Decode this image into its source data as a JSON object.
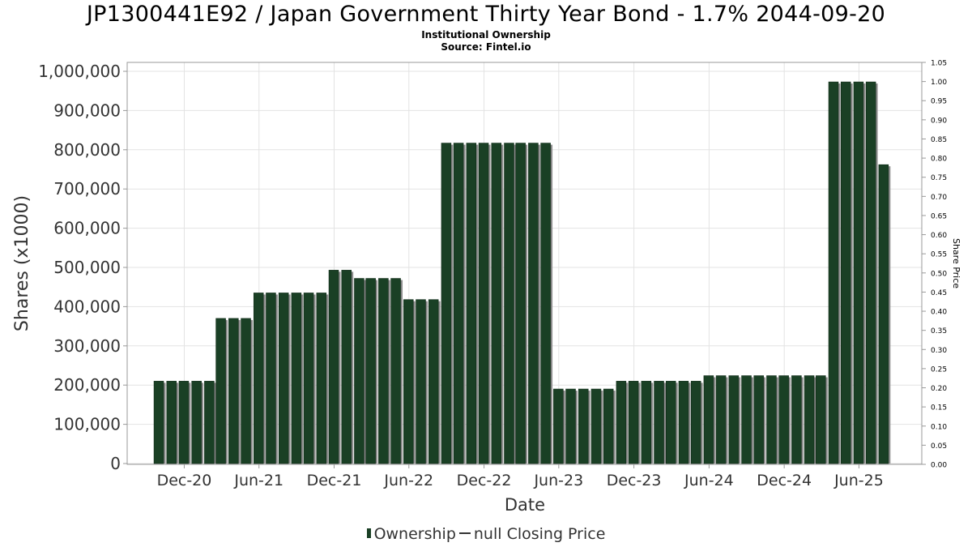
{
  "chart_data": {
    "type": "bar",
    "title": "JP1300441E92 / Japan Government Thirty Year Bond - 1.7% 2044-09-20",
    "subtitle_lines": [
      "Institutional Ownership",
      "Source: Fintel.io"
    ],
    "xlabel": "Date",
    "ylabel": "Shares (x1000)",
    "y2label": "Share Price",
    "ylim": [
      0,
      1020000
    ],
    "y_ticks": [
      "0",
      "100,000",
      "200,000",
      "300,000",
      "400,000",
      "500,000",
      "600,000",
      "700,000",
      "800,000",
      "900,000",
      "1,000,000"
    ],
    "y_tick_values": [
      0,
      100000,
      200000,
      300000,
      400000,
      500000,
      600000,
      700000,
      800000,
      900000,
      1000000
    ],
    "y2lim": [
      0,
      1.05
    ],
    "y2_ticks": [
      "0.00",
      "0.05",
      "0.10",
      "0.15",
      "0.20",
      "0.25",
      "0.30",
      "0.35",
      "0.40",
      "0.45",
      "0.50",
      "0.55",
      "0.60",
      "0.65",
      "0.70",
      "0.75",
      "0.80",
      "0.85",
      "0.90",
      "0.95",
      "1.00",
      "1.05"
    ],
    "x_ticks": [
      {
        "label": "Dec-20",
        "date": "2020-12-01"
      },
      {
        "label": "Jun-21",
        "date": "2021-06-01"
      },
      {
        "label": "Dec-21",
        "date": "2021-12-01"
      },
      {
        "label": "Jun-22",
        "date": "2022-06-01"
      },
      {
        "label": "Dec-22",
        "date": "2022-12-01"
      },
      {
        "label": "Jun-23",
        "date": "2023-06-01"
      },
      {
        "label": "Dec-23",
        "date": "2023-12-01"
      },
      {
        "label": "Jun-24",
        "date": "2024-06-01"
      },
      {
        "label": "Dec-24",
        "date": "2024-12-01"
      },
      {
        "label": "Jun-25",
        "date": "2025-06-01"
      }
    ],
    "xlim": [
      "2020-07-15",
      "2025-11-01"
    ],
    "grid": true,
    "legend_position": "bottom",
    "series": [
      {
        "name": "Ownership",
        "color": "#1a4025",
        "x": [
          "2020-09-30",
          "2020-10-31",
          "2020-11-30",
          "2020-12-31",
          "2021-01-31",
          "2021-02-28",
          "2021-03-31",
          "2021-04-30",
          "2021-05-31",
          "2021-06-30",
          "2021-07-31",
          "2021-08-31",
          "2021-09-30",
          "2021-10-31",
          "2021-11-30",
          "2021-12-31",
          "2022-01-31",
          "2022-02-28",
          "2022-03-31",
          "2022-04-30",
          "2022-05-31",
          "2022-06-30",
          "2022-07-31",
          "2022-08-31",
          "2022-09-30",
          "2022-10-31",
          "2022-11-30",
          "2022-12-31",
          "2023-01-31",
          "2023-02-28",
          "2023-03-31",
          "2023-04-30",
          "2023-05-31",
          "2023-06-30",
          "2023-07-31",
          "2023-08-31",
          "2023-09-30",
          "2023-10-31",
          "2023-11-30",
          "2023-12-31",
          "2024-01-31",
          "2024-02-29",
          "2024-03-31",
          "2024-04-30",
          "2024-05-31",
          "2024-06-30",
          "2024-07-31",
          "2024-08-31",
          "2024-09-30",
          "2024-10-31",
          "2024-11-30",
          "2024-12-31",
          "2025-01-31",
          "2025-02-28",
          "2025-03-31",
          "2025-04-30",
          "2025-05-31",
          "2025-06-30",
          "2025-07-31"
        ],
        "values": [
          210000,
          210000,
          210000,
          210000,
          210000,
          370000,
          370000,
          370000,
          435000,
          435000,
          435000,
          435000,
          435000,
          435000,
          493000,
          493000,
          472000,
          472000,
          472000,
          472000,
          418000,
          418000,
          418000,
          817000,
          817000,
          817000,
          817000,
          817000,
          817000,
          817000,
          817000,
          817000,
          190000,
          190000,
          190000,
          190000,
          190000,
          210000,
          210000,
          210000,
          210000,
          210000,
          210000,
          210000,
          224000,
          224000,
          224000,
          224000,
          224000,
          224000,
          224000,
          224000,
          224000,
          224000,
          973000,
          973000,
          973000,
          973000,
          762000
        ]
      },
      {
        "name": "null Closing Price",
        "color": "#333333",
        "values": []
      }
    ]
  }
}
